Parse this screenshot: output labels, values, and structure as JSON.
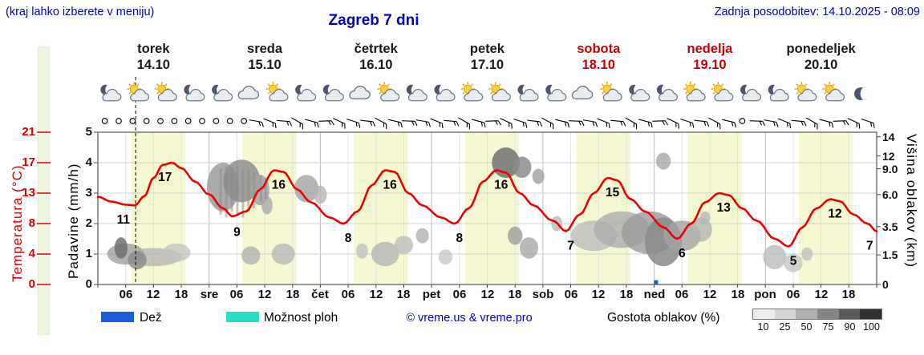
{
  "header": {
    "note": "(kraj lahko izberete v meniju)",
    "title": "Zagreb 7 dni",
    "updated": "Zadnja posodobitev: 14.10.2025 - 08:09"
  },
  "days": [
    {
      "name": "torek",
      "date": "14.10",
      "weekend": false,
      "icons": [
        "moon-cloud",
        "sun-cloud",
        "sun-cloud",
        "moon-cloud"
      ]
    },
    {
      "name": "sreda",
      "date": "15.10",
      "weekend": false,
      "icons": [
        "moon-cloud",
        "cloud",
        "sun-cloud",
        "moon-cloud"
      ]
    },
    {
      "name": "četrtek",
      "date": "16.10",
      "weekend": false,
      "icons": [
        "moon-cloud",
        "cloud",
        "sun-cloud",
        "moon-cloud"
      ]
    },
    {
      "name": "petek",
      "date": "17.10",
      "weekend": false,
      "icons": [
        "moon-cloud",
        "sun-cloud",
        "sun-cloud",
        "moon-cloud"
      ]
    },
    {
      "name": "sobota",
      "date": "18.10",
      "weekend": true,
      "icons": [
        "moon-cloud",
        "cloud",
        "sun-cloud",
        "moon-cloud"
      ]
    },
    {
      "name": "nedelja",
      "date": "19.10",
      "weekend": true,
      "icons": [
        "moon-cloud",
        "sun-cloud",
        "sun-cloud",
        "moon-cloud"
      ]
    },
    {
      "name": "ponedeljek",
      "date": "20.10",
      "weekend": false,
      "icons": [
        "moon-cloud",
        "sun-cloud",
        "sun-cloud",
        "moon"
      ]
    }
  ],
  "x_axis": {
    "hour_labels": [
      "06",
      "12",
      "18"
    ],
    "day_abbrevs": [
      "sre",
      "čet",
      "pet",
      "sob",
      "ned",
      "pon"
    ]
  },
  "axes": {
    "temperature": {
      "label": "Temperatura (°C)",
      "color": "#dd0000",
      "ticks": [
        "21",
        "17",
        "13",
        "8",
        "4",
        "0"
      ],
      "tick_v": [
        5,
        4,
        3,
        2,
        1,
        0
      ]
    },
    "precip": {
      "label": "Padavine (mm/h)",
      "ticks": [
        "5",
        "4",
        "3",
        "2",
        "1",
        "0"
      ],
      "tick_v": [
        5,
        4,
        3,
        2,
        1,
        0
      ]
    },
    "cloud_height": {
      "label": "Višina oblakov (km)",
      "ticks": [
        "14",
        "12",
        "9.0",
        "6.0",
        "3.5",
        "1.5",
        "0"
      ],
      "tick_v": [
        4.85,
        4.22,
        3.8,
        2.95,
        1.9,
        0.97,
        0
      ]
    }
  },
  "legend": {
    "rain_label": "Dež",
    "rain_color": "#1b5fd6",
    "showers_label": "Možnost ploh",
    "showers_color": "#25dfc4",
    "copyright": "© vreme.us & vreme.pro",
    "cloud_density_label": "Gostota oblakov (%)",
    "cloud_scale_labels": [
      "10",
      "25",
      "50",
      "75",
      "90",
      "100"
    ],
    "cloud_scale_colors": [
      "#ededed",
      "#d6d6d6",
      "#b0b0b0",
      "#858585",
      "#5a5a5a",
      "#303030"
    ]
  },
  "chart_data": {
    "type": "line",
    "title": "Zagreb 7 dni",
    "x_range_hours": [
      0,
      168
    ],
    "now_t": 8.15,
    "day_band": {
      "start": 7.2,
      "end": 18.9,
      "color": "#f5f8d0"
    },
    "temp_axis_map": {
      "temps": [
        0,
        4,
        8,
        13,
        17,
        21
      ],
      "grid_v": [
        0,
        1,
        2,
        3,
        4,
        5
      ]
    },
    "series": [
      {
        "name": "Temperatura (°C)",
        "color": "#f00000",
        "x_hours": [
          0,
          3,
          6,
          8,
          10,
          12,
          14,
          16,
          18,
          21,
          24,
          27,
          29,
          32,
          35,
          38,
          40,
          43,
          46,
          50,
          53,
          56,
          59,
          62,
          64,
          67,
          70,
          74,
          77,
          80,
          83,
          86,
          88,
          91,
          94,
          98,
          101,
          104,
          107,
          110,
          112,
          115,
          118,
          122,
          125,
          128,
          131,
          134,
          136,
          139,
          142,
          146,
          149,
          152,
          155,
          158,
          160,
          163,
          166,
          168
        ],
        "values": [
          12.4,
          11.6,
          11.1,
          11.0,
          12.5,
          15.0,
          16.7,
          17.0,
          16.3,
          14.5,
          12.8,
          10.5,
          9.2,
          10.0,
          13.5,
          16.0,
          15.8,
          13.5,
          11.5,
          9.0,
          8.0,
          10.0,
          14.0,
          16.0,
          15.8,
          13.0,
          11.0,
          9.0,
          8.0,
          10.5,
          14.5,
          16.0,
          15.7,
          13.0,
          11.0,
          8.5,
          7.0,
          9.5,
          13.0,
          15.0,
          14.7,
          12.0,
          10.0,
          7.5,
          6.0,
          8.0,
          11.5,
          13.0,
          12.7,
          10.5,
          8.5,
          6.0,
          5.0,
          7.5,
          10.5,
          12.0,
          11.7,
          9.5,
          8.0,
          7.0
        ]
      }
    ],
    "point_labels": [
      [
        5.5,
        11
      ],
      [
        14.5,
        17
      ],
      [
        30,
        9
      ],
      [
        39,
        16
      ],
      [
        54,
        8
      ],
      [
        63,
        16
      ],
      [
        78,
        8
      ],
      [
        87,
        16
      ],
      [
        102,
        7
      ],
      [
        111,
        15
      ],
      [
        126,
        6
      ],
      [
        135,
        13
      ],
      [
        150,
        5
      ],
      [
        159,
        12
      ],
      [
        166.5,
        7
      ]
    ],
    "icon_offsets": [
      2.5,
      8.5,
      14.5,
      20.5
    ],
    "clouds": [
      [
        6,
        1.0,
        4,
        0.35,
        "#9a9a9a",
        0.75
      ],
      [
        12,
        0.9,
        6,
        0.3,
        "#b2b2b2",
        0.75
      ],
      [
        17,
        1.05,
        3,
        0.3,
        "#c2c2c2",
        0.75
      ],
      [
        5,
        1.2,
        1.4,
        0.35,
        "#6e6e6e",
        0.85
      ],
      [
        8.5,
        0.8,
        2,
        0.3,
        "#8a8a8a",
        0.8
      ],
      [
        27,
        3.2,
        3.5,
        0.8,
        "#9c9c9c",
        0.85
      ],
      [
        31,
        3.4,
        4,
        0.7,
        "#8e8e8e",
        0.85
      ],
      [
        35,
        3.1,
        2,
        0.5,
        "#a5a5a5",
        0.85
      ],
      [
        36.5,
        2.6,
        1.2,
        0.3,
        "#aaaaaa",
        0.8
      ],
      [
        45,
        3.15,
        2.6,
        0.45,
        "#a2a2a2",
        0.8
      ],
      [
        48,
        2.95,
        1.4,
        0.3,
        "#b5b5b5",
        0.8
      ],
      [
        33,
        0.95,
        2,
        0.3,
        "#b0b0b0",
        0.8
      ],
      [
        40,
        1.0,
        2.5,
        0.35,
        "#b8b8b8",
        0.8
      ],
      [
        57,
        1.1,
        1.3,
        0.25,
        "#c0c0c0",
        0.8
      ],
      [
        62,
        1.0,
        3,
        0.4,
        "#b4b4b4",
        0.8
      ],
      [
        66,
        1.3,
        2,
        0.3,
        "#bdbdbd",
        0.8
      ],
      [
        70,
        1.6,
        1.4,
        0.25,
        "#b0b0b0",
        0.8
      ],
      [
        75,
        0.9,
        1.5,
        0.25,
        "#c5c5c5",
        0.75
      ],
      [
        88,
        4.0,
        3,
        0.5,
        "#787878",
        0.9
      ],
      [
        91.5,
        3.85,
        2,
        0.35,
        "#8c8c8c",
        0.85
      ],
      [
        95,
        3.55,
        1.3,
        0.25,
        "#a0a0a0",
        0.8
      ],
      [
        90,
        1.6,
        1.6,
        0.3,
        "#9c9c9c",
        0.8
      ],
      [
        93,
        1.2,
        2,
        0.35,
        "#a8a8a8",
        0.8
      ],
      [
        99,
        2.0,
        1.2,
        0.25,
        "#b5b5b5",
        0.75
      ],
      [
        107,
        1.6,
        5,
        0.5,
        "#bcbcbc",
        0.8
      ],
      [
        113,
        1.8,
        6,
        0.6,
        "#ababab",
        0.8
      ],
      [
        119,
        1.7,
        6,
        0.7,
        "#9a9a9a",
        0.8
      ],
      [
        122,
        1.4,
        4,
        0.8,
        "#8a8a8a",
        0.85
      ],
      [
        126,
        1.6,
        4,
        0.5,
        "#a3a3a3",
        0.8
      ],
      [
        130,
        1.8,
        2.5,
        0.4,
        "#b3b3b3",
        0.8
      ],
      [
        122,
        4.05,
        1.6,
        0.28,
        "#a8a8a8",
        0.8
      ],
      [
        131,
        2.2,
        1.1,
        0.2,
        "#b8b8b8",
        0.8
      ],
      [
        146,
        0.9,
        2.5,
        0.4,
        "#bcbcbc",
        0.8
      ],
      [
        150,
        0.7,
        2,
        0.3,
        "#c6c6c6",
        0.8
      ],
      [
        153,
        1.0,
        1.2,
        0.22,
        "#c0c0c0",
        0.8
      ]
    ],
    "rain_streaks": [
      [
        26.5,
        3.8,
        2.3
      ],
      [
        27.7,
        3.9,
        2.2
      ],
      [
        28.9,
        3.85,
        2.4
      ],
      [
        30.1,
        3.9,
        2.3
      ],
      [
        31.3,
        3.8,
        2.2
      ],
      [
        32.5,
        3.75,
        2.4
      ],
      [
        33.7,
        3.7,
        2.5
      ],
      [
        35.2,
        3.6,
        2.7
      ],
      [
        36.2,
        3.5,
        2.8
      ]
    ],
    "rain_bars": [
      [
        120.4,
        0.14
      ]
    ],
    "wind": {
      "calm_t": [
        1.5,
        4.5,
        7.5,
        10.5,
        13.5,
        16.5,
        19.5,
        22.5,
        25.5,
        28.5,
        31.5,
        139
      ],
      "barb_start": 34,
      "barb_end": 166,
      "barb_step": 3,
      "barb_skip": [
        139
      ],
      "rots_cycle": [
        100,
        112,
        95,
        120,
        105,
        88,
        115,
        108,
        97,
        118,
        103,
        92
      ]
    }
  }
}
